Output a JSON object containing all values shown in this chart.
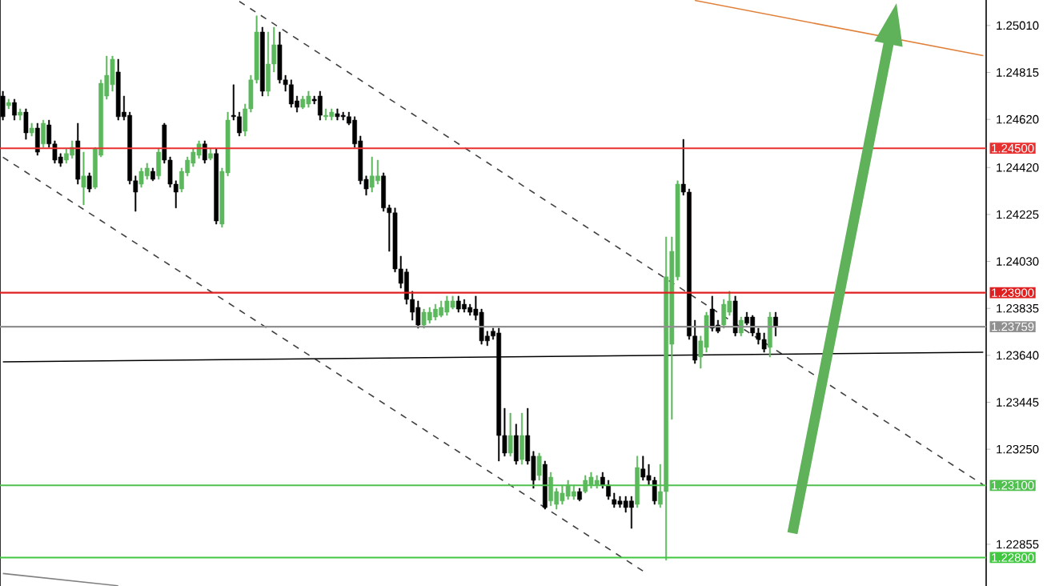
{
  "chart_data": {
    "type": "candlestick",
    "categories": [
      null,
      null,
      null,
      null,
      null,
      null,
      null,
      null,
      null,
      null,
      null,
      null,
      null,
      null,
      null,
      null,
      null,
      null,
      null,
      null,
      null,
      null,
      null,
      null,
      null,
      null,
      null,
      null,
      null,
      null,
      null,
      null,
      null,
      null,
      null,
      null,
      null,
      null,
      null,
      null,
      null,
      null,
      null,
      null,
      null,
      null,
      null,
      null,
      null,
      null,
      null,
      null,
      null,
      null,
      null,
      null,
      null,
      null,
      null,
      null,
      null,
      null,
      null,
      null,
      null,
      null,
      null,
      null,
      null,
      null,
      null,
      null,
      null,
      null,
      null,
      null,
      null,
      null,
      null,
      null,
      null,
      null,
      null,
      null,
      null,
      null,
      null,
      null,
      null,
      null,
      null,
      null,
      null,
      null,
      null,
      null,
      null,
      null,
      null,
      null,
      null,
      null,
      null,
      null,
      null,
      null,
      null,
      null,
      null,
      null,
      null,
      null,
      null,
      null,
      null,
      null,
      null,
      null,
      null,
      null,
      null,
      null,
      null,
      null,
      null,
      null,
      null,
      null,
      null,
      null,
      null,
      null,
      null,
      null,
      null,
      null,
      null,
      null,
      null,
      null,
      null,
      null,
      null,
      null,
      null,
      null,
      null,
      null,
      null,
      null,
      null,
      null,
      null,
      null,
      null,
      null,
      null,
      null,
      null,
      null,
      null,
      null,
      null,
      null,
      null,
      null,
      null,
      null,
      null,
      null,
      null
    ],
    "ohlc": [
      [
        1.24717,
        1.24737,
        1.24617,
        1.24631
      ],
      [
        1.24677,
        1.24704,
        1.24664,
        1.2469
      ],
      [
        1.2469,
        1.24704,
        1.24617,
        1.24637
      ],
      [
        1.24637,
        1.24664,
        1.24617,
        1.2465
      ],
      [
        1.2465,
        1.24664,
        1.24537,
        1.24564
      ],
      [
        1.24564,
        1.24604,
        1.24551,
        1.24584
      ],
      [
        1.24584,
        1.24604,
        1.24471,
        1.24484
      ],
      [
        1.24518,
        1.24617,
        1.24504,
        1.24604
      ],
      [
        1.24597,
        1.24617,
        1.24504,
        1.24518
      ],
      [
        1.24518,
        1.24531,
        1.24438,
        1.24451
      ],
      [
        1.24464,
        1.24478,
        1.24424,
        1.24438
      ],
      [
        1.24451,
        1.24498,
        1.24438,
        1.24478
      ],
      [
        1.24471,
        1.24531,
        1.24458,
        1.24504
      ],
      [
        1.24531,
        1.24604,
        1.24351,
        1.24371
      ],
      [
        1.24338,
        1.24484,
        1.24265,
        1.24385
      ],
      [
        1.24385,
        1.24398,
        1.24318,
        1.24331
      ],
      [
        1.24338,
        1.24504,
        1.24331,
        1.24498
      ],
      [
        1.24471,
        1.24784,
        1.24464,
        1.2477
      ],
      [
        1.24717,
        1.24883,
        1.24704,
        1.24803
      ],
      [
        1.24764,
        1.24883,
        1.24737,
        1.2487
      ],
      [
        1.24817,
        1.2487,
        1.24617,
        1.24631
      ],
      [
        1.2465,
        1.24717,
        1.24617,
        1.24631
      ],
      [
        1.24637,
        1.2465,
        1.24351,
        1.24365
      ],
      [
        1.24365,
        1.24385,
        1.24238,
        1.24318
      ],
      [
        1.24351,
        1.24418,
        1.24338,
        1.24404
      ],
      [
        1.24385,
        1.24438,
        1.24371,
        1.24418
      ],
      [
        1.24404,
        1.24418,
        1.24365,
        1.24371
      ],
      [
        1.24385,
        1.24498,
        1.24371,
        1.24484
      ],
      [
        1.24597,
        1.24604,
        1.24438,
        1.24451
      ],
      [
        1.24451,
        1.24464,
        1.24338,
        1.24351
      ],
      [
        1.24351,
        1.24365,
        1.24252,
        1.24318
      ],
      [
        1.24331,
        1.24418,
        1.24318,
        1.24404
      ],
      [
        1.24398,
        1.24464,
        1.24385,
        1.24451
      ],
      [
        1.24438,
        1.24498,
        1.24424,
        1.24484
      ],
      [
        1.24471,
        1.24531,
        1.24458,
        1.24518
      ],
      [
        1.24518,
        1.24531,
        1.24438,
        1.24451
      ],
      [
        1.24458,
        1.24498,
        1.24451,
        1.24478
      ],
      [
        1.24478,
        1.24498,
        1.24185,
        1.24198
      ],
      [
        1.24185,
        1.24418,
        1.24172,
        1.24404
      ],
      [
        1.24398,
        1.2465,
        1.24385,
        1.24617
      ],
      [
        1.24637,
        1.24764,
        1.24617,
        1.24631
      ],
      [
        1.24631,
        1.2465,
        1.24551,
        1.24564
      ],
      [
        1.24571,
        1.24684,
        1.24551,
        1.24664
      ],
      [
        1.24664,
        1.24803,
        1.2465,
        1.24784
      ],
      [
        1.24784,
        1.2505,
        1.2477,
        1.24983
      ],
      [
        1.24983,
        1.25003,
        1.24717,
        1.24737
      ],
      [
        1.24737,
        1.24983,
        1.24717,
        1.2485
      ],
      [
        1.2485,
        1.25003,
        1.24817,
        1.2493
      ],
      [
        1.2493,
        1.24983,
        1.2477,
        1.24784
      ],
      [
        1.24784,
        1.24803,
        1.24737,
        1.24764
      ],
      [
        1.24764,
        1.24784,
        1.2467,
        1.24684
      ],
      [
        1.24697,
        1.24717,
        1.2465,
        1.2467
      ],
      [
        1.2467,
        1.24717,
        1.24664,
        1.24704
      ],
      [
        1.24684,
        1.24737,
        1.2467,
        1.24717
      ],
      [
        1.24704,
        1.24717,
        1.24684,
        1.24697
      ],
      [
        1.24717,
        1.24737,
        1.24617,
        1.24637
      ],
      [
        1.24631,
        1.24664,
        1.24617,
        1.24637
      ],
      [
        1.24631,
        1.24664,
        1.24617,
        1.2465
      ],
      [
        1.24644,
        1.24664,
        1.24617,
        1.24631
      ],
      [
        1.24637,
        1.2465,
        1.24617,
        1.24631
      ],
      [
        1.24631,
        1.2465,
        1.24597,
        1.24604
      ],
      [
        1.24617,
        1.24631,
        1.24504,
        1.24518
      ],
      [
        1.24531,
        1.24551,
        1.24351,
        1.24365
      ],
      [
        1.24371,
        1.24385,
        1.24305,
        1.24331
      ],
      [
        1.24338,
        1.24464,
        1.24318,
        1.24385
      ],
      [
        1.24365,
        1.24451,
        1.24351,
        1.24385
      ],
      [
        1.24385,
        1.24398,
        1.24238,
        1.24252
      ],
      [
        1.24252,
        1.24265,
        1.24072,
        1.24232
      ],
      [
        1.24232,
        1.24252,
        1.23986,
        1.23999
      ],
      [
        1.23999,
        1.24052,
        1.23919,
        1.23939
      ],
      [
        1.23986,
        1.23999,
        1.23852,
        1.23872
      ],
      [
        1.23872,
        1.23906,
        1.23786,
        1.23819
      ],
      [
        1.23839,
        1.23866,
        1.23753,
        1.23766
      ],
      [
        1.23766,
        1.23832,
        1.23753,
        1.23819
      ],
      [
        1.23786,
        1.23839,
        1.23773,
        1.23819
      ],
      [
        1.23799,
        1.23852,
        1.23786,
        1.23832
      ],
      [
        1.23806,
        1.23866,
        1.23799,
        1.23839
      ],
      [
        1.23819,
        1.23886,
        1.23806,
        1.23866
      ],
      [
        1.23839,
        1.23886,
        1.23832,
        1.23866
      ],
      [
        1.23866,
        1.23886,
        1.23819,
        1.23832
      ],
      [
        1.23852,
        1.23872,
        1.23819,
        1.23832
      ],
      [
        1.23839,
        1.23852,
        1.23806,
        1.23819
      ],
      [
        1.23832,
        1.23886,
        1.23786,
        1.23806
      ],
      [
        1.23819,
        1.23832,
        1.23686,
        1.237
      ],
      [
        1.2372,
        1.2374,
        1.2368,
        1.237
      ],
      [
        1.2374,
        1.23753,
        1.23706,
        1.2372
      ],
      [
        1.23733,
        1.23753,
        1.23201,
        1.23307
      ],
      [
        1.23307,
        1.2342,
        1.23221,
        1.23234
      ],
      [
        1.23234,
        1.234,
        1.23221,
        1.23307
      ],
      [
        1.23307,
        1.23354,
        1.23187,
        1.23201
      ],
      [
        1.23207,
        1.234,
        1.23187,
        1.23307
      ],
      [
        1.23307,
        1.2342,
        1.23187,
        1.23201
      ],
      [
        1.23221,
        1.23241,
        1.23088,
        1.23121
      ],
      [
        1.23141,
        1.23234,
        1.23121,
        1.23221
      ],
      [
        1.23187,
        1.23201,
        1.23001,
        1.23008
      ],
      [
        1.23035,
        1.23154,
        1.23015,
        1.23134
      ],
      [
        1.23021,
        1.23088,
        1.23001,
        1.23074
      ],
      [
        1.23035,
        1.23101,
        1.23021,
        1.23068
      ],
      [
        1.23054,
        1.23121,
        1.23041,
        1.23101
      ],
      [
        1.23054,
        1.23101,
        1.23041,
        1.23074
      ],
      [
        1.23074,
        1.23088,
        1.23035,
        1.23041
      ],
      [
        1.23074,
        1.23141,
        1.23068,
        1.23121
      ],
      [
        1.23101,
        1.23154,
        1.23088,
        1.23134
      ],
      [
        1.23101,
        1.23141,
        1.23088,
        1.23121
      ],
      [
        1.23134,
        1.23154,
        1.23088,
        1.23101
      ],
      [
        1.23101,
        1.23121,
        1.23041,
        1.23054
      ],
      [
        1.23041,
        1.23068,
        1.23008,
        1.23021
      ],
      [
        1.23035,
        1.23054,
        1.23008,
        1.23021
      ],
      [
        1.23035,
        1.23054,
        1.22988,
        1.23008
      ],
      [
        1.23035,
        1.23054,
        1.22921,
        1.23008
      ],
      [
        1.23021,
        1.23221,
        1.23008,
        1.23174
      ],
      [
        1.23168,
        1.23221,
        1.23121,
        1.23134
      ],
      [
        1.23141,
        1.23187,
        1.23101,
        1.23121
      ],
      [
        1.23121,
        1.23134,
        1.23021,
        1.23035
      ],
      [
        1.23021,
        1.23187,
        1.23008,
        1.23074
      ],
      [
        1.23074,
        1.24132,
        1.22789,
        1.23966
      ],
      [
        1.23686,
        1.24132,
        1.23374,
        1.24072
      ],
      [
        1.23966,
        1.24365,
        1.23952,
        1.24351
      ],
      [
        1.24351,
        1.24537,
        1.24305,
        1.24318
      ],
      [
        1.24318,
        1.24331,
        1.23706,
        1.2372
      ],
      [
        1.2372,
        1.23786,
        1.23606,
        1.2362
      ],
      [
        1.23633,
        1.2372,
        1.23586,
        1.237
      ],
      [
        1.23673,
        1.23819,
        1.23653,
        1.23806
      ],
      [
        1.23832,
        1.23886,
        1.2374,
        1.23753
      ],
      [
        1.23766,
        1.23786,
        1.23733,
        1.2374
      ],
      [
        1.23766,
        1.23872,
        1.23753,
        1.23852
      ],
      [
        1.23819,
        1.23906,
        1.23806,
        1.23866
      ],
      [
        1.23866,
        1.23886,
        1.2372,
        1.23733
      ],
      [
        1.23733,
        1.23799,
        1.2372,
        1.23786
      ],
      [
        1.23799,
        1.23819,
        1.23766,
        1.23773
      ],
      [
        1.23799,
        1.23806,
        1.2372,
        1.23733
      ],
      [
        1.23733,
        1.23753,
        1.23686,
        1.23706
      ],
      [
        1.23706,
        1.23733,
        1.23653,
        1.23666
      ],
      [
        1.23673,
        1.23819,
        1.23633,
        1.23799
      ],
      [
        1.23799,
        1.23819,
        1.2372,
        1.23759
      ],
      null,
      null,
      null,
      null,
      null,
      null,
      null,
      null,
      null,
      null,
      null,
      null,
      null,
      null,
      null,
      null,
      null,
      null,
      null,
      null,
      null,
      null,
      null,
      null,
      null,
      null,
      null,
      null,
      null,
      null,
      null,
      null,
      null,
      null,
      null,
      null
    ],
    "colors": [
      "#000000",
      "#5cb85c",
      "#000000",
      "#5cb85c",
      "#000000",
      "#5cb85c",
      "#000000",
      "#5cb85c",
      "#000000",
      "#000000",
      "#000000",
      "#5cb85c",
      "#5cb85c",
      "#000000",
      "#5cb85c",
      "#000000",
      "#5cb85c",
      "#5cb85c",
      "#5cb85c",
      "#5cb85c",
      "#000000",
      "#000000",
      "#000000",
      "#000000",
      "#5cb85c",
      "#5cb85c",
      "#000000",
      "#5cb85c",
      "#000000",
      "#000000",
      "#000000",
      "#5cb85c",
      "#5cb85c",
      "#5cb85c",
      "#5cb85c",
      "#000000",
      "#5cb85c",
      "#000000",
      "#5cb85c",
      "#5cb85c",
      "#000000",
      "#000000",
      "#5cb85c",
      "#5cb85c",
      "#5cb85c",
      "#000000",
      "#5cb85c",
      "#5cb85c",
      "#000000",
      "#000000",
      "#000000",
      "#000000",
      "#5cb85c",
      "#5cb85c",
      "#000000",
      "#000000",
      "#5cb85c",
      "#5cb85c",
      "#000000",
      "#000000",
      "#000000",
      "#000000",
      "#000000",
      "#000000",
      "#5cb85c",
      "#5cb85c",
      "#000000",
      "#000000",
      "#000000",
      "#000000",
      "#000000",
      "#000000",
      "#000000",
      "#5cb85c",
      "#5cb85c",
      "#5cb85c",
      "#5cb85c",
      "#5cb85c",
      "#5cb85c",
      "#000000",
      "#000000",
      "#000000",
      "#000000",
      "#000000",
      "#000000",
      "#000000",
      "#000000",
      "#000000",
      "#5cb85c",
      "#000000",
      "#5cb85c",
      "#000000",
      "#000000",
      "#5cb85c",
      "#000000",
      "#5cb85c",
      "#5cb85c",
      "#5cb85c",
      "#5cb85c",
      "#5cb85c",
      "#000000",
      "#5cb85c",
      "#5cb85c",
      "#5cb85c",
      "#000000",
      "#000000",
      "#000000",
      "#000000",
      "#000000",
      "#000000",
      "#5cb85c",
      "#000000",
      "#000000",
      "#000000",
      "#5cb85c",
      "#5cb85c",
      "#5cb85c",
      "#5cb85c",
      "#000000",
      "#000000",
      "#000000",
      "#5cb85c",
      "#5cb85c",
      "#000000",
      "#000000",
      "#5cb85c",
      "#5cb85c",
      "#000000",
      "#5cb85c",
      "#000000",
      "#000000",
      "#000000",
      "#000000",
      "#5cb85c",
      "#000000",
      null,
      null,
      null,
      null,
      null,
      null,
      null,
      null,
      null,
      null,
      null,
      null,
      null,
      null,
      null,
      null,
      null,
      null,
      null,
      null,
      null,
      null,
      null,
      null,
      null,
      null,
      null,
      null,
      null,
      null,
      null,
      null,
      null,
      null,
      null,
      null
    ],
    "series": [
      {
        "type": "line",
        "color": "#404040",
        "line_style": "dashed",
        "values": [
          null,
          null,
          null,
          null,
          null,
          null,
          null,
          null,
          null,
          null,
          null,
          null,
          null,
          null,
          null,
          null,
          null,
          null,
          null,
          null,
          null,
          null,
          null,
          null,
          null,
          null,
          null,
          null,
          null,
          null,
          null,
          null,
          null,
          null,
          null,
          null,
          null,
          null,
          null,
          null,
          null,
          1.2511,
          null,
          null,
          null,
          null,
          null,
          null,
          null,
          null,
          null,
          null,
          null,
          null,
          null,
          null,
          null,
          null,
          null,
          null,
          null,
          null,
          null,
          null,
          null,
          null,
          null,
          null,
          null,
          null,
          null,
          null,
          null,
          null,
          null,
          null,
          null,
          null,
          null,
          null,
          null,
          null,
          null,
          null,
          null,
          null,
          null,
          null,
          null,
          null,
          null,
          null,
          null,
          null,
          null,
          null,
          null,
          null,
          null,
          null,
          null,
          null,
          null,
          null,
          null,
          null,
          null,
          null,
          null,
          null,
          null,
          null,
          null,
          null,
          null,
          null,
          null,
          null,
          null,
          null,
          null,
          null,
          null,
          null,
          null,
          null,
          null,
          null,
          null,
          null,
          null,
          null,
          null,
          null,
          null,
          null,
          null,
          null,
          null,
          null,
          null,
          null,
          null,
          null,
          null,
          null,
          null,
          null,
          null,
          null,
          null,
          null,
          null,
          null,
          null,
          null,
          null,
          null,
          null,
          null,
          null,
          null,
          null,
          null,
          null,
          null,
          null,
          null,
          null,
          null,
          1.23102
        ]
      },
      {
        "type": "line",
        "color": "#404040",
        "line_style": "dashed",
        "values": [
          1.24463,
          null,
          null,
          null,
          null,
          null,
          null,
          null,
          null,
          null,
          null,
          null,
          null,
          null,
          null,
          null,
          null,
          null,
          null,
          null,
          null,
          null,
          null,
          null,
          null,
          null,
          null,
          null,
          null,
          null,
          null,
          null,
          null,
          null,
          null,
          null,
          null,
          null,
          null,
          null,
          null,
          null,
          null,
          null,
          null,
          null,
          null,
          null,
          null,
          null,
          null,
          null,
          null,
          null,
          null,
          null,
          null,
          null,
          null,
          null,
          null,
          null,
          null,
          null,
          null,
          null,
          null,
          null,
          null,
          null,
          null,
          null,
          null,
          null,
          null,
          null,
          null,
          null,
          null,
          null,
          null,
          null,
          null,
          null,
          null,
          null,
          null,
          null,
          null,
          null,
          null,
          null,
          null,
          null,
          null,
          null,
          null,
          null,
          null,
          null,
          null,
          null,
          null,
          null,
          null,
          null,
          null,
          null,
          null,
          null,
          null,
          1.22744,
          null,
          null,
          null,
          null,
          null,
          null,
          null,
          null,
          null,
          null,
          null,
          null,
          null,
          null,
          null,
          null,
          null,
          null,
          null,
          null,
          null,
          null,
          null,
          null,
          null,
          null,
          null,
          null,
          null,
          null,
          null,
          null,
          null,
          null,
          null,
          null,
          null,
          null,
          null,
          null,
          null,
          null,
          null,
          null,
          null,
          null,
          null,
          null,
          null,
          null,
          null,
          null,
          null,
          null,
          null,
          null,
          null,
          null,
          null
        ]
      },
      {
        "type": "line",
        "color": "#000000",
        "line_style": "solid",
        "values": [
          1.23613,
          null,
          null,
          null,
          null,
          null,
          null,
          null,
          null,
          null,
          null,
          null,
          null,
          null,
          null,
          null,
          null,
          null,
          null,
          null,
          null,
          null,
          null,
          null,
          null,
          null,
          null,
          null,
          null,
          null,
          null,
          null,
          null,
          null,
          null,
          null,
          null,
          null,
          null,
          null,
          null,
          null,
          null,
          null,
          null,
          null,
          null,
          null,
          null,
          null,
          null,
          null,
          null,
          null,
          null,
          null,
          null,
          null,
          null,
          null,
          null,
          null,
          null,
          null,
          null,
          null,
          null,
          null,
          null,
          null,
          null,
          null,
          null,
          null,
          null,
          null,
          null,
          null,
          null,
          null,
          null,
          null,
          null,
          null,
          null,
          null,
          null,
          null,
          null,
          null,
          null,
          null,
          null,
          null,
          null,
          null,
          null,
          null,
          null,
          null,
          null,
          null,
          null,
          null,
          null,
          null,
          null,
          null,
          null,
          null,
          null,
          null,
          null,
          null,
          null,
          null,
          null,
          null,
          null,
          null,
          null,
          null,
          null,
          null,
          null,
          null,
          null,
          null,
          null,
          null,
          null,
          null,
          null,
          null,
          null,
          null,
          null,
          null,
          null,
          null,
          null,
          null,
          null,
          null,
          null,
          null,
          null,
          null,
          null,
          null,
          null,
          null,
          null,
          null,
          null,
          null,
          null,
          null,
          null,
          null,
          null,
          null,
          null,
          null,
          null,
          null,
          null,
          null,
          null,
          null,
          1.23653
        ]
      },
      {
        "type": "line",
        "color": "#e0803a",
        "line_style": "solid",
        "values": [
          null,
          null,
          null,
          null,
          null,
          null,
          null,
          null,
          null,
          null,
          null,
          null,
          null,
          null,
          null,
          null,
          null,
          null,
          null,
          null,
          null,
          null,
          null,
          null,
          null,
          null,
          null,
          null,
          null,
          null,
          null,
          null,
          null,
          null,
          null,
          null,
          null,
          null,
          null,
          null,
          null,
          null,
          null,
          null,
          null,
          null,
          null,
          null,
          null,
          null,
          null,
          null,
          null,
          null,
          null,
          null,
          null,
          null,
          null,
          null,
          null,
          null,
          null,
          null,
          null,
          null,
          null,
          null,
          null,
          null,
          null,
          null,
          null,
          null,
          null,
          null,
          null,
          null,
          null,
          null,
          null,
          null,
          null,
          null,
          null,
          null,
          null,
          null,
          null,
          null,
          null,
          null,
          null,
          null,
          null,
          null,
          null,
          null,
          null,
          null,
          null,
          null,
          null,
          null,
          null,
          null,
          null,
          null,
          null,
          null,
          null,
          null,
          null,
          null,
          null,
          null,
          null,
          null,
          null,
          null,
          1.25114,
          null,
          null,
          null,
          null,
          null,
          null,
          null,
          null,
          null,
          null,
          null,
          null,
          null,
          null,
          null,
          null,
          null,
          null,
          null,
          null,
          null,
          null,
          null,
          null,
          null,
          null,
          null,
          null,
          null,
          null,
          null,
          null,
          null,
          null,
          null,
          null,
          null,
          null,
          null,
          null,
          null,
          null,
          null,
          null,
          null,
          null,
          null,
          null,
          null,
          1.24885
        ]
      },
      {
        "type": "line",
        "color": "#808080",
        "line_style": "solid",
        "values": [
          1.22734,
          null,
          null,
          null,
          null,
          null,
          null,
          null,
          null,
          null,
          null,
          null,
          null,
          null,
          null,
          null,
          null,
          null,
          null,
          null,
          1.22683,
          null,
          null,
          null,
          null,
          null,
          null,
          null,
          null,
          null,
          null,
          null,
          null,
          null,
          null,
          null,
          null,
          null,
          null,
          null,
          null,
          null,
          null,
          null,
          null,
          null,
          null,
          null,
          null,
          null,
          null,
          null,
          null,
          null,
          null,
          null,
          null,
          null,
          null,
          null,
          null,
          null,
          null,
          null,
          null,
          null,
          null,
          null,
          null,
          null,
          null,
          null,
          null,
          null,
          null,
          null,
          null,
          null,
          null,
          null,
          null,
          null,
          null,
          null,
          null,
          null,
          null,
          null,
          null,
          null,
          null,
          null,
          null,
          null,
          null,
          null,
          null,
          null,
          null,
          null,
          null,
          null,
          null,
          null,
          null,
          null,
          null,
          null,
          null,
          null,
          null,
          null,
          null,
          null,
          null,
          null,
          null,
          null,
          null,
          null,
          null,
          null,
          null,
          null,
          null,
          null,
          null,
          null,
          null,
          null,
          null,
          null,
          null,
          null,
          null,
          null,
          null,
          null,
          null,
          null,
          null,
          null,
          null,
          null,
          null,
          null,
          null,
          null,
          null,
          null,
          null,
          null,
          null,
          null,
          null,
          null,
          null,
          null,
          null,
          null,
          null,
          null,
          null,
          null,
          null,
          null,
          null,
          null,
          null,
          null,
          null
        ]
      }
    ],
    "ylim": [
      1.22682,
      1.25116
    ],
    "yticks": [
      {
        "value": 1.2501,
        "label": "1.25010"
      },
      {
        "value": 1.24815,
        "label": "1.24815"
      },
      {
        "value": 1.2462,
        "label": "1.24620"
      },
      {
        "value": 1.2442,
        "label": "1.24420"
      },
      {
        "value": 1.24225,
        "label": "1.24225"
      },
      {
        "value": 1.2403,
        "label": "1.24030"
      },
      {
        "value": 1.23835,
        "label": "1.23835"
      },
      {
        "value": 1.2364,
        "label": "1.23640"
      },
      {
        "value": 1.23445,
        "label": "1.23445"
      },
      {
        "value": 1.2325,
        "label": "1.23250"
      },
      {
        "value": 1.22855,
        "label": "1.22855"
      }
    ],
    "ref_lines": [
      {
        "axis": "y",
        "value": 1.245,
        "label": "1.24500",
        "color": "#e83030"
      },
      {
        "axis": "y",
        "value": 1.239,
        "label": "1.23900",
        "color": "#e02020"
      },
      {
        "axis": "y",
        "value": 1.23759,
        "label": "1.23759",
        "color": "#909090"
      },
      {
        "axis": "y",
        "value": 1.231,
        "label": "1.23100",
        "color": "#50c050"
      },
      {
        "axis": "y",
        "value": 1.228,
        "label": "1.22800",
        "color": "#40c840"
      }
    ]
  }
}
